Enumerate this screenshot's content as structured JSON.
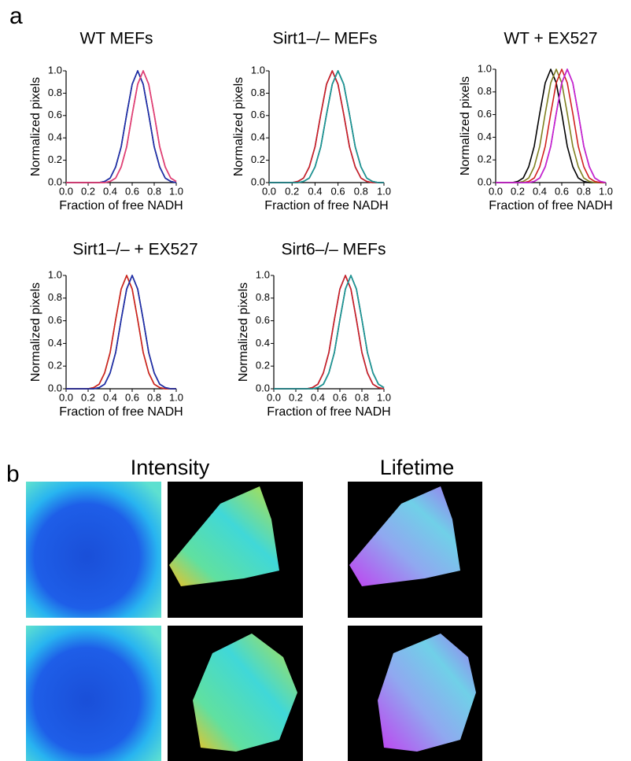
{
  "panels": {
    "a": "a",
    "b": "b",
    "intensity": "Intensity",
    "lifetime": "Lifetime"
  },
  "chart_data": [
    {
      "type": "line",
      "title": "WT MEFs",
      "x_label": "Fraction of free NADH",
      "y_label": "Normalized pixels",
      "x": [
        0,
        0.05,
        0.1,
        0.15,
        0.2,
        0.25,
        0.3,
        0.35,
        0.4,
        0.45,
        0.5,
        0.55,
        0.6,
        0.65,
        0.7,
        0.75,
        0.8,
        0.85,
        0.9,
        0.95,
        1
      ],
      "series": [
        {
          "color": "#000000",
          "values": [
            0,
            0,
            0,
            0,
            0,
            0,
            0,
            0.01,
            0.04,
            0.14,
            0.32,
            0.61,
            0.88,
            1,
            0.88,
            0.61,
            0.32,
            0.14,
            0.04,
            0.01,
            0
          ]
        },
        {
          "color": "#1f2fb0",
          "values": [
            0,
            0,
            0,
            0,
            0,
            0,
            0,
            0.01,
            0.04,
            0.14,
            0.32,
            0.61,
            0.88,
            1,
            0.88,
            0.61,
            0.32,
            0.14,
            0.04,
            0.01,
            0
          ]
        },
        {
          "color": "#d02020",
          "values": [
            0,
            0,
            0,
            0,
            0,
            0,
            0,
            0,
            0.01,
            0.04,
            0.14,
            0.32,
            0.61,
            0.88,
            1,
            0.88,
            0.61,
            0.32,
            0.14,
            0.04,
            0.01
          ]
        },
        {
          "color": "#e0407a",
          "values": [
            0,
            0,
            0,
            0,
            0,
            0,
            0,
            0,
            0.01,
            0.04,
            0.14,
            0.32,
            0.61,
            0.88,
            1,
            0.88,
            0.61,
            0.32,
            0.14,
            0.04,
            0.01
          ]
        }
      ],
      "xlim": [
        0,
        1
      ],
      "ylim": [
        0,
        1
      ],
      "xticks": [
        {
          "value": 0,
          "label": "0.0"
        },
        {
          "value": 0.2,
          "label": "0.2"
        },
        {
          "value": 0.4,
          "label": "0.4"
        },
        {
          "value": 0.6,
          "label": "0.6"
        },
        {
          "value": 0.8,
          "label": "0.8"
        },
        {
          "value": 1,
          "label": "1.0"
        }
      ],
      "yticks": [
        {
          "value": 0,
          "label": "0.0"
        },
        {
          "value": 0.2,
          "label": "0.2"
        },
        {
          "value": 0.4,
          "label": "0.4"
        },
        {
          "value": 0.6,
          "label": "0.6"
        },
        {
          "value": 0.8,
          "label": "0.8"
        },
        {
          "value": 1,
          "label": "1.0"
        }
      ]
    },
    {
      "type": "line",
      "title": "Sirt1–/– MEFs",
      "x_label": "Fraction of free NADH",
      "y_label": "Normalized pixels",
      "x": [
        0,
        0.05,
        0.1,
        0.15,
        0.2,
        0.25,
        0.3,
        0.35,
        0.4,
        0.45,
        0.5,
        0.55,
        0.6,
        0.65,
        0.7,
        0.75,
        0.8,
        0.85,
        0.9,
        0.95,
        1
      ],
      "series": [
        {
          "color": "#1f2fb0",
          "values": [
            0,
            0,
            0,
            0,
            0,
            0.01,
            0.04,
            0.14,
            0.32,
            0.61,
            0.88,
            1,
            0.88,
            0.61,
            0.32,
            0.14,
            0.04,
            0.01,
            0,
            0,
            0
          ]
        },
        {
          "color": "#d02020",
          "values": [
            0,
            0,
            0,
            0,
            0,
            0.01,
            0.04,
            0.14,
            0.32,
            0.61,
            0.88,
            1,
            0.88,
            0.61,
            0.32,
            0.14,
            0.04,
            0.01,
            0,
            0,
            0
          ]
        },
        {
          "color": "#000000",
          "values": [
            0,
            0,
            0,
            0,
            0,
            0,
            0.01,
            0.04,
            0.14,
            0.32,
            0.61,
            0.88,
            1,
            0.88,
            0.61,
            0.32,
            0.14,
            0.04,
            0.01,
            0,
            0
          ]
        },
        {
          "color": "#1a9a9a",
          "values": [
            0,
            0,
            0,
            0,
            0,
            0,
            0.01,
            0.04,
            0.14,
            0.32,
            0.61,
            0.88,
            1,
            0.88,
            0.61,
            0.32,
            0.14,
            0.04,
            0.01,
            0,
            0
          ]
        }
      ],
      "xlim": [
        0,
        1
      ],
      "ylim": [
        0,
        1
      ],
      "xticks": [
        {
          "value": 0,
          "label": "0.0"
        },
        {
          "value": 0.2,
          "label": "0.2"
        },
        {
          "value": 0.4,
          "label": "0.4"
        },
        {
          "value": 0.6,
          "label": "0.6"
        },
        {
          "value": 0.8,
          "label": "0.8"
        },
        {
          "value": 1,
          "label": "1.0"
        }
      ],
      "yticks": [
        {
          "value": 0,
          "label": "0.0"
        },
        {
          "value": 0.2,
          "label": "0.2"
        },
        {
          "value": 0.4,
          "label": "0.4"
        },
        {
          "value": 0.6,
          "label": "0.6"
        },
        {
          "value": 0.8,
          "label": "0.8"
        },
        {
          "value": 1,
          "label": "1.0"
        }
      ]
    },
    {
      "type": "line",
      "title": "WT + EX527",
      "x_label": "Fraction of free NADH",
      "y_label": "Normalized pixels",
      "x": [
        0,
        0.05,
        0.1,
        0.15,
        0.2,
        0.25,
        0.3,
        0.35,
        0.4,
        0.45,
        0.5,
        0.55,
        0.6,
        0.65,
        0.7,
        0.75,
        0.8,
        0.85,
        0.9,
        0.95,
        1
      ],
      "series": [
        {
          "color": "#000000",
          "values": [
            0,
            0,
            0,
            0,
            0.01,
            0.04,
            0.14,
            0.32,
            0.61,
            0.88,
            1,
            0.88,
            0.61,
            0.32,
            0.14,
            0.04,
            0.01,
            0,
            0,
            0,
            0
          ]
        },
        {
          "color": "#808020",
          "values": [
            0,
            0,
            0,
            0,
            0,
            0.01,
            0.04,
            0.14,
            0.32,
            0.61,
            0.88,
            1,
            0.88,
            0.61,
            0.32,
            0.14,
            0.04,
            0.01,
            0,
            0,
            0
          ]
        },
        {
          "color": "#d02020",
          "values": [
            0,
            0,
            0,
            0,
            0,
            0,
            0.01,
            0.04,
            0.14,
            0.32,
            0.61,
            0.88,
            1,
            0.88,
            0.61,
            0.32,
            0.14,
            0.04,
            0.01,
            0,
            0
          ]
        },
        {
          "color": "#1f2fb0",
          "values": [
            0,
            0,
            0,
            0,
            0,
            0,
            0,
            0.01,
            0.04,
            0.14,
            0.32,
            0.61,
            0.88,
            1,
            0.88,
            0.61,
            0.32,
            0.14,
            0.04,
            0.01,
            0
          ]
        },
        {
          "color": "#d020d0",
          "values": [
            0,
            0,
            0,
            0,
            0,
            0,
            0,
            0.01,
            0.04,
            0.14,
            0.32,
            0.61,
            0.88,
            1,
            0.88,
            0.61,
            0.32,
            0.14,
            0.04,
            0.01,
            0
          ]
        }
      ],
      "xlim": [
        0,
        1
      ],
      "ylim": [
        0,
        1
      ],
      "xticks": [
        {
          "value": 0,
          "label": "0.0"
        },
        {
          "value": 0.2,
          "label": "0.2"
        },
        {
          "value": 0.4,
          "label": "0.4"
        },
        {
          "value": 0.6,
          "label": "0.6"
        },
        {
          "value": 0.8,
          "label": "0.8"
        },
        {
          "value": 1,
          "label": "1.0"
        }
      ],
      "yticks": [
        {
          "value": 0,
          "label": "0.0"
        },
        {
          "value": 0.2,
          "label": "0.2"
        },
        {
          "value": 0.4,
          "label": "0.4"
        },
        {
          "value": 0.6,
          "label": "0.6"
        },
        {
          "value": 0.8,
          "label": "0.8"
        },
        {
          "value": 1,
          "label": "1.0"
        }
      ]
    },
    {
      "type": "line",
      "title": "Sirt1–/– + EX527",
      "x_label": "Fraction of free NADH",
      "y_label": "Normalized pixels",
      "x": [
        0,
        0.05,
        0.1,
        0.15,
        0.2,
        0.25,
        0.3,
        0.35,
        0.4,
        0.45,
        0.5,
        0.55,
        0.6,
        0.65,
        0.7,
        0.75,
        0.8,
        0.85,
        0.9,
        0.95,
        1
      ],
      "series": [
        {
          "color": "#808020",
          "values": [
            0,
            0,
            0,
            0,
            0,
            0.01,
            0.04,
            0.14,
            0.32,
            0.61,
            0.88,
            1,
            0.88,
            0.61,
            0.32,
            0.14,
            0.04,
            0.01,
            0,
            0,
            0
          ]
        },
        {
          "color": "#d02020",
          "values": [
            0,
            0,
            0,
            0,
            0,
            0.01,
            0.04,
            0.14,
            0.32,
            0.61,
            0.88,
            1,
            0.88,
            0.61,
            0.32,
            0.14,
            0.04,
            0.01,
            0,
            0,
            0
          ]
        },
        {
          "color": "#000000",
          "values": [
            0,
            0,
            0,
            0,
            0,
            0,
            0.01,
            0.04,
            0.14,
            0.32,
            0.61,
            0.88,
            1,
            0.88,
            0.61,
            0.32,
            0.14,
            0.04,
            0.01,
            0,
            0
          ]
        },
        {
          "color": "#1f2fb0",
          "values": [
            0,
            0,
            0,
            0,
            0,
            0,
            0.01,
            0.04,
            0.14,
            0.32,
            0.61,
            0.88,
            1,
            0.88,
            0.61,
            0.32,
            0.14,
            0.04,
            0.01,
            0,
            0
          ]
        }
      ],
      "xlim": [
        0,
        1
      ],
      "ylim": [
        0,
        1
      ],
      "xticks": [
        {
          "value": 0,
          "label": "0.0"
        },
        {
          "value": 0.2,
          "label": "0.2"
        },
        {
          "value": 0.4,
          "label": "0.4"
        },
        {
          "value": 0.6,
          "label": "0.6"
        },
        {
          "value": 0.8,
          "label": "0.8"
        },
        {
          "value": 1,
          "label": "1.0"
        }
      ],
      "yticks": [
        {
          "value": 0,
          "label": "0.0"
        },
        {
          "value": 0.2,
          "label": "0.2"
        },
        {
          "value": 0.4,
          "label": "0.4"
        },
        {
          "value": 0.6,
          "label": "0.6"
        },
        {
          "value": 0.8,
          "label": "0.8"
        },
        {
          "value": 1,
          "label": "1.0"
        }
      ]
    },
    {
      "type": "line",
      "title": "Sirt6–/– MEFs",
      "x_label": "Fraction of free NADH",
      "y_label": "Normalized pixels",
      "x": [
        0,
        0.05,
        0.1,
        0.15,
        0.2,
        0.25,
        0.3,
        0.35,
        0.4,
        0.45,
        0.5,
        0.55,
        0.6,
        0.65,
        0.7,
        0.75,
        0.8,
        0.85,
        0.9,
        0.95,
        1
      ],
      "series": [
        {
          "color": "#1f2fb0",
          "values": [
            0,
            0,
            0,
            0,
            0,
            0,
            0,
            0.01,
            0.04,
            0.14,
            0.32,
            0.61,
            0.88,
            1,
            0.88,
            0.61,
            0.32,
            0.14,
            0.04,
            0.01,
            0
          ]
        },
        {
          "color": "#d02020",
          "values": [
            0,
            0,
            0,
            0,
            0,
            0,
            0,
            0.01,
            0.04,
            0.14,
            0.32,
            0.61,
            0.88,
            1,
            0.88,
            0.61,
            0.32,
            0.14,
            0.04,
            0.01,
            0
          ]
        },
        {
          "color": "#000000",
          "values": [
            0,
            0,
            0,
            0,
            0,
            0,
            0,
            0,
            0.01,
            0.04,
            0.14,
            0.32,
            0.61,
            0.88,
            1,
            0.88,
            0.61,
            0.32,
            0.14,
            0.04,
            0.01
          ]
        },
        {
          "color": "#1a9a9a",
          "values": [
            0,
            0,
            0,
            0,
            0,
            0,
            0,
            0,
            0.01,
            0.04,
            0.14,
            0.32,
            0.61,
            0.88,
            1,
            0.88,
            0.61,
            0.32,
            0.14,
            0.04,
            0.01
          ]
        }
      ],
      "xlim": [
        0,
        1
      ],
      "ylim": [
        0,
        1
      ],
      "xticks": [
        {
          "value": 0,
          "label": "0.0"
        },
        {
          "value": 0.2,
          "label": "0.2"
        },
        {
          "value": 0.4,
          "label": "0.4"
        },
        {
          "value": 0.6,
          "label": "0.6"
        },
        {
          "value": 0.8,
          "label": "0.8"
        },
        {
          "value": 1,
          "label": "1.0"
        }
      ],
      "yticks": [
        {
          "value": 0,
          "label": "0.0"
        },
        {
          "value": 0.2,
          "label": "0.2"
        },
        {
          "value": 0.4,
          "label": "0.4"
        },
        {
          "value": 0.6,
          "label": "0.6"
        },
        {
          "value": 0.8,
          "label": "0.8"
        },
        {
          "value": 1,
          "label": "1.0"
        }
      ]
    }
  ]
}
